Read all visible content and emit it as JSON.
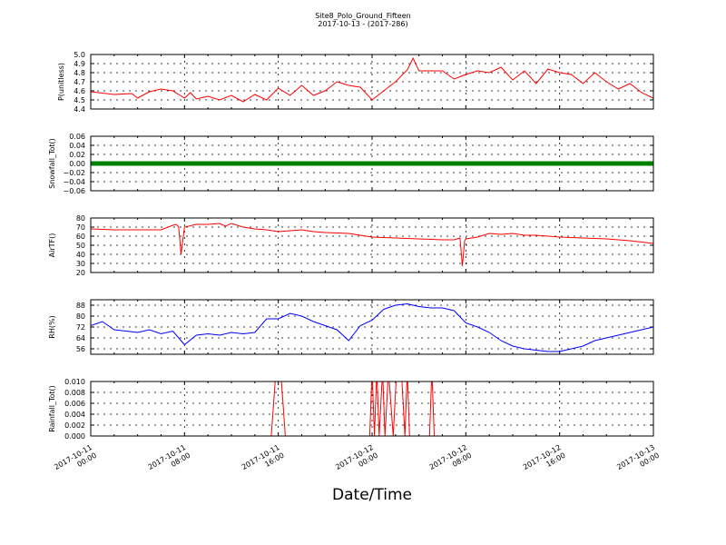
{
  "title": "Site8_Polo_Ground_Fifteen",
  "subtitle": "2017-10-13 - (2017-286)",
  "xlabel": "Date/Time",
  "x_ticks": [
    {
      "l1": "2017-10-11",
      "l2": "00:00"
    },
    {
      "l1": "2017-10-11",
      "l2": "08:00"
    },
    {
      "l1": "2017-10-11",
      "l2": "16:00"
    },
    {
      "l1": "2017-10-12",
      "l2": "00:00"
    },
    {
      "l1": "2017-10-12",
      "l2": "08:00"
    },
    {
      "l1": "2017-10-12",
      "l2": "16:00"
    },
    {
      "l1": "2017-10-13",
      "l2": "00:00"
    }
  ],
  "chart_data": [
    {
      "type": "line",
      "ylabel": "P(unitless)",
      "ylim": [
        4.4,
        5.0
      ],
      "yticks": [
        "4.4",
        "4.5",
        "4.6",
        "4.7",
        "4.8",
        "4.9",
        "5.0"
      ],
      "color": "#ff0000",
      "x_hours": [
        0,
        2,
        3.5,
        4,
        5,
        6,
        7,
        8,
        8.5,
        9,
        10,
        11,
        12,
        13,
        14,
        15,
        16,
        17,
        18,
        19,
        20,
        21,
        22,
        23,
        24,
        25,
        26,
        27,
        27.5,
        28,
        29,
        30,
        31,
        32,
        33,
        34,
        35,
        36,
        37,
        38,
        39,
        40,
        41,
        42,
        43,
        44,
        45,
        46,
        47,
        48
      ],
      "values": [
        4.59,
        4.56,
        4.57,
        4.52,
        4.59,
        4.62,
        4.6,
        4.52,
        4.58,
        4.51,
        4.54,
        4.5,
        4.55,
        4.48,
        4.56,
        4.5,
        4.63,
        4.55,
        4.66,
        4.55,
        4.6,
        4.7,
        4.66,
        4.64,
        4.5,
        4.6,
        4.7,
        4.83,
        4.96,
        4.82,
        4.82,
        4.82,
        4.73,
        4.78,
        4.82,
        4.8,
        4.86,
        4.72,
        4.82,
        4.68,
        4.84,
        4.8,
        4.78,
        4.68,
        4.8,
        4.7,
        4.62,
        4.68,
        4.58,
        4.52
      ]
    },
    {
      "type": "line",
      "ylabel": "Snowfall_Tot()",
      "ylim": [
        -0.06,
        0.06
      ],
      "yticks": [
        "−0.06",
        "−0.04",
        "−0.02",
        "0.00",
        "0.02",
        "0.04",
        "0.06"
      ],
      "color": "#008000",
      "x_hours": [
        0,
        48
      ],
      "values": [
        0.0,
        0.0
      ]
    },
    {
      "type": "line",
      "ylabel": "AirTF()",
      "ylim": [
        20,
        80
      ],
      "yticks": [
        "20",
        "30",
        "40",
        "50",
        "60",
        "70",
        "80"
      ],
      "color": "#ff0000",
      "x_hours": [
        0,
        2,
        4,
        6,
        7,
        7.3,
        7.5,
        7.7,
        8,
        9,
        10,
        11,
        11.5,
        12,
        13,
        14,
        15,
        16,
        17,
        18,
        19,
        20,
        22,
        24,
        26,
        28,
        30,
        31,
        31.5,
        31.7,
        31.9,
        32,
        33,
        34,
        35,
        36,
        37,
        38,
        40,
        42,
        44,
        46,
        48
      ],
      "values": [
        68,
        67,
        67,
        67,
        72,
        73,
        70,
        40,
        70,
        73,
        73,
        74,
        71,
        74,
        70,
        68,
        67,
        65,
        66,
        67,
        65,
        64,
        63,
        59,
        58,
        57,
        56,
        56,
        58,
        27,
        55,
        57,
        59,
        63,
        62,
        63,
        61,
        61,
        59,
        58,
        57,
        55,
        52
      ]
    },
    {
      "type": "line",
      "ylabel": "RH(%)",
      "ylim": [
        52,
        92
      ],
      "yticks": [
        "56",
        "64",
        "72",
        "80",
        "88"
      ],
      "color": "#0000ff",
      "x_hours": [
        0,
        1,
        2,
        3,
        4,
        5,
        6,
        7,
        7.5,
        8,
        9,
        10,
        11,
        12,
        13,
        14,
        15,
        16,
        17,
        18,
        19,
        20,
        21,
        22,
        23,
        24,
        25,
        26,
        27,
        28,
        29,
        30,
        31,
        32,
        33,
        34,
        35,
        36,
        37,
        38,
        39,
        40,
        41,
        42,
        43,
        44,
        45,
        46,
        47,
        48
      ],
      "values": [
        73,
        76,
        70,
        69,
        68,
        70,
        67,
        69,
        64,
        59,
        66,
        67,
        66,
        68,
        67,
        68,
        78,
        78,
        82,
        80,
        76,
        73,
        70,
        62,
        73,
        77,
        85,
        88,
        89,
        87,
        86,
        86,
        84,
        75,
        72,
        68,
        62,
        58,
        56,
        55,
        54,
        54,
        56,
        58,
        62,
        64,
        66,
        68,
        70,
        72
      ]
    },
    {
      "type": "line",
      "ylabel": "Rainfall_Tot()",
      "ylim": [
        0,
        0.01
      ],
      "yticks": [
        "0.000",
        "0.002",
        "0.004",
        "0.006",
        "0.008",
        "0.010"
      ],
      "color": "#ff0000",
      "x_hours": [
        0,
        15.4,
        15.8,
        16.2,
        16.6,
        23.8,
        24.0,
        24.2,
        24.4,
        24.6,
        24.9,
        25.1,
        25.4,
        25.8,
        26.1,
        26.5,
        26.8,
        27.0,
        27.2,
        28.9,
        29.1,
        29.3,
        48
      ],
      "values": [
        0,
        0,
        0.012,
        0.012,
        0,
        0,
        0.012,
        0,
        0.012,
        0,
        0.012,
        0,
        0.012,
        0,
        0.012,
        0.012,
        0,
        0.012,
        0,
        0,
        0.012,
        0,
        0
      ]
    }
  ]
}
